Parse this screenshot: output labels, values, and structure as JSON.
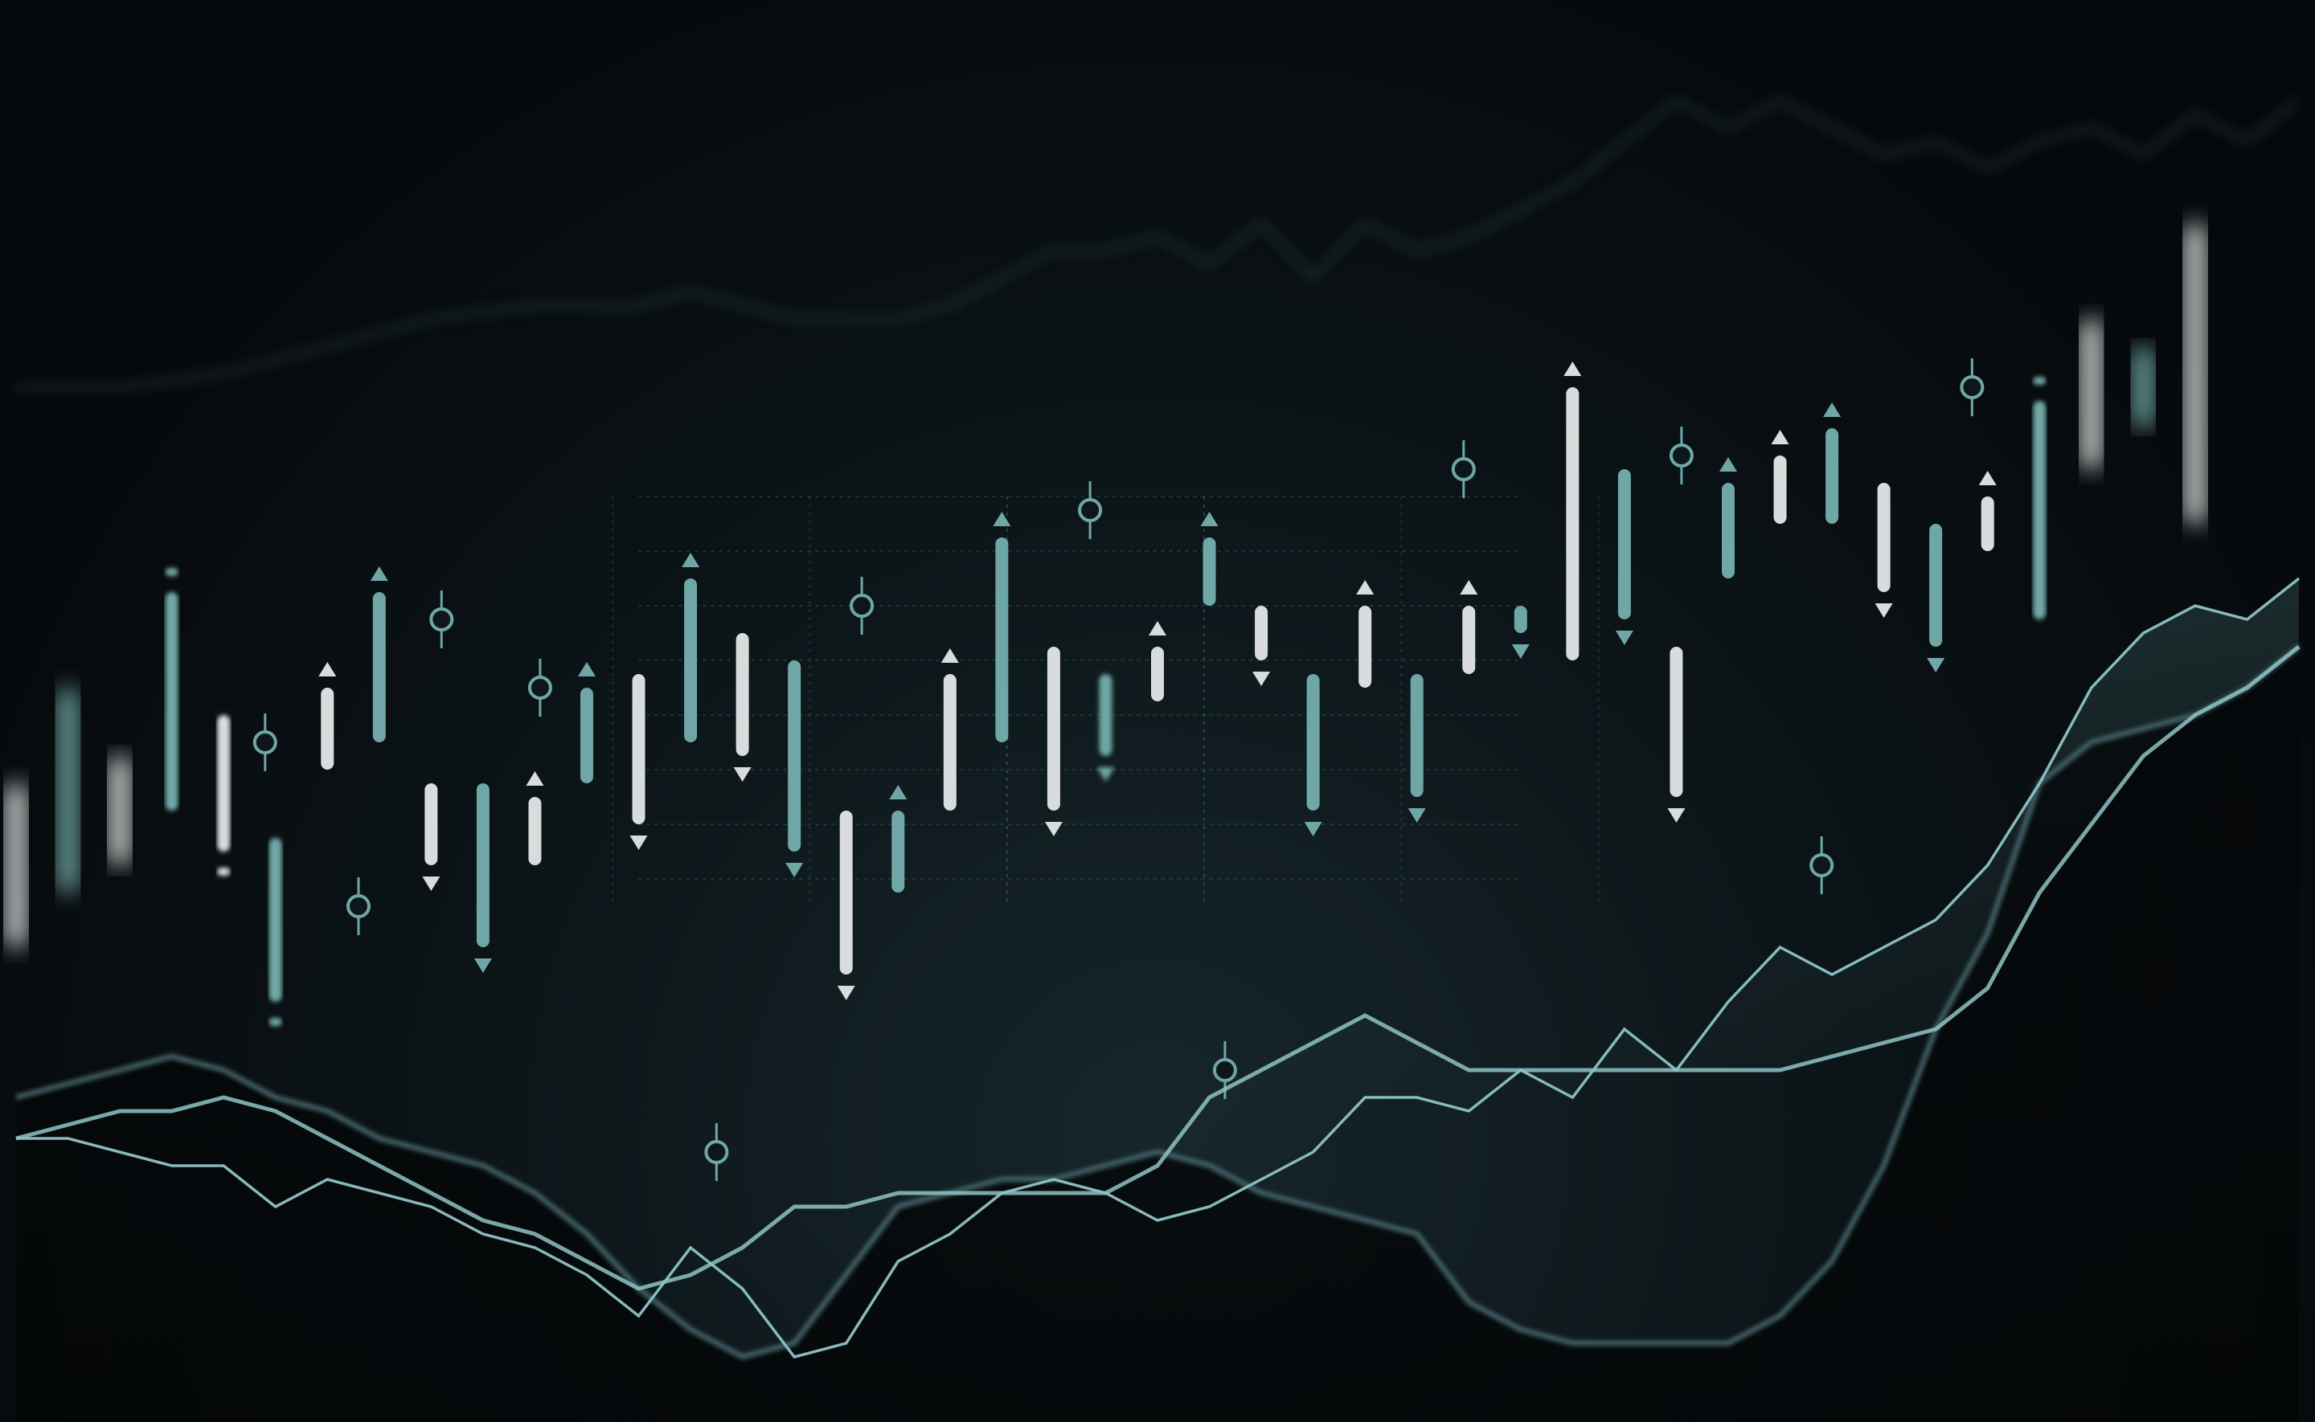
{
  "colors": {
    "teal": "#6fa7a6",
    "white": "#d9dcdc",
    "line_bright": "#8fc3c6",
    "line_dim": "#4f7479",
    "grid": "#3d6d70",
    "background": "#06090b"
  },
  "chart_data": {
    "type": "candlestick",
    "title": "",
    "xlabel": "",
    "ylabel": "",
    "grid": true,
    "legend": "none",
    "x_range": [
      0,
      44
    ],
    "y_range": [
      0,
      100
    ],
    "candles": [
      {
        "x": 0,
        "low": 33,
        "high": 45,
        "color": "white",
        "blur": 2
      },
      {
        "x": 1,
        "low": 37,
        "high": 52,
        "color": "teal",
        "blur": 2
      },
      {
        "x": 2,
        "low": 39,
        "high": 47,
        "color": "white",
        "blur": 2
      },
      {
        "x": 3,
        "low": 43,
        "high": 59,
        "color": "teal",
        "blur": 1,
        "top_dot": true
      },
      {
        "x": 4,
        "low": 40,
        "high": 50,
        "color": "white",
        "blur": 1,
        "bottom_dot": true
      },
      {
        "x": 5,
        "low": 29,
        "high": 41,
        "color": "teal",
        "blur": 1,
        "bottom_dot": true
      },
      {
        "x": 6,
        "low": 46,
        "high": 52,
        "color": "white",
        "marker": "up"
      },
      {
        "x": 7,
        "low": 48,
        "high": 59,
        "color": "teal",
        "marker": "up"
      },
      {
        "x": 8,
        "low": 39,
        "high": 45,
        "color": "white",
        "marker": "down"
      },
      {
        "x": 9,
        "low": 33,
        "high": 45,
        "color": "teal",
        "marker": "down"
      },
      {
        "x": 10,
        "low": 39,
        "high": 44,
        "color": "white",
        "marker": "up"
      },
      {
        "x": 11,
        "low": 45,
        "high": 52,
        "color": "teal",
        "marker": "up"
      },
      {
        "x": 12,
        "low": 42,
        "high": 53,
        "color": "white",
        "marker": "down"
      },
      {
        "x": 13,
        "low": 48,
        "high": 60,
        "color": "teal",
        "marker": "up"
      },
      {
        "x": 14,
        "low": 47,
        "high": 56,
        "color": "white",
        "marker": "down"
      },
      {
        "x": 15,
        "low": 40,
        "high": 54,
        "color": "teal",
        "marker": "down"
      },
      {
        "x": 16,
        "low": 31,
        "high": 43,
        "color": "white",
        "marker": "down"
      },
      {
        "x": 17,
        "low": 37,
        "high": 43,
        "color": "teal",
        "marker": "up"
      },
      {
        "x": 18,
        "low": 43,
        "high": 53,
        "color": "white",
        "marker": "up"
      },
      {
        "x": 19,
        "low": 48,
        "high": 63,
        "color": "teal",
        "marker": "up"
      },
      {
        "x": 20,
        "low": 43,
        "high": 55,
        "color": "white",
        "marker": "down"
      },
      {
        "x": 21,
        "low": 47,
        "high": 53,
        "color": "teal",
        "marker": "down",
        "blur": 1
      },
      {
        "x": 22,
        "low": 51,
        "high": 55,
        "color": "white",
        "marker": "up"
      },
      {
        "x": 23,
        "low": 58,
        "high": 63,
        "color": "teal",
        "marker": "up"
      },
      {
        "x": 24,
        "low": 54,
        "high": 58,
        "color": "white",
        "marker": "down"
      },
      {
        "x": 25,
        "low": 43,
        "high": 53,
        "color": "teal",
        "marker": "down"
      },
      {
        "x": 26,
        "low": 52,
        "high": 58,
        "color": "white",
        "marker": "up"
      },
      {
        "x": 27,
        "low": 44,
        "high": 53,
        "color": "teal",
        "marker": "down"
      },
      {
        "x": 28,
        "low": 53,
        "high": 58,
        "color": "white",
        "marker": "up"
      },
      {
        "x": 29,
        "low": 56,
        "high": 58,
        "color": "teal",
        "marker": "down"
      },
      {
        "x": 30,
        "low": 54,
        "high": 74,
        "color": "white",
        "marker": "up"
      },
      {
        "x": 31,
        "low": 57,
        "high": 68,
        "color": "teal",
        "marker": "down"
      },
      {
        "x": 32,
        "low": 44,
        "high": 55,
        "color": "white",
        "marker": "down"
      },
      {
        "x": 33,
        "low": 60,
        "high": 67,
        "color": "teal",
        "marker": "up"
      },
      {
        "x": 34,
        "low": 64,
        "high": 69,
        "color": "white",
        "marker": "up"
      },
      {
        "x": 35,
        "low": 64,
        "high": 71,
        "color": "teal",
        "marker": "up"
      },
      {
        "x": 36,
        "low": 59,
        "high": 67,
        "color": "white",
        "marker": "down"
      },
      {
        "x": 37,
        "low": 55,
        "high": 64,
        "color": "teal",
        "marker": "down"
      },
      {
        "x": 38,
        "low": 62,
        "high": 66,
        "color": "white",
        "marker": "up"
      },
      {
        "x": 39,
        "low": 57,
        "high": 73,
        "color": "teal",
        "blur": 1,
        "top_dot": true
      },
      {
        "x": 40,
        "low": 68,
        "high": 79,
        "color": "white",
        "blur": 2
      },
      {
        "x": 41,
        "low": 71,
        "high": 77,
        "color": "teal",
        "blur": 2
      },
      {
        "x": 42,
        "low": 64,
        "high": 86,
        "color": "white",
        "blur": 2
      }
    ],
    "pins": [
      {
        "x": 4.8,
        "y": 48
      },
      {
        "x": 6.6,
        "y": 36
      },
      {
        "x": 8.2,
        "y": 57
      },
      {
        "x": 10.1,
        "y": 52
      },
      {
        "x": 13.5,
        "y": 18
      },
      {
        "x": 16.3,
        "y": 58
      },
      {
        "x": 20.7,
        "y": 65
      },
      {
        "x": 23.3,
        "y": 24
      },
      {
        "x": 27.9,
        "y": 68
      },
      {
        "x": 32.1,
        "y": 69
      },
      {
        "x": 34.8,
        "y": 39
      },
      {
        "x": 37.7,
        "y": 74
      }
    ],
    "series": [
      {
        "role": "upper-line",
        "x": [
          0,
          1,
          2,
          3,
          4,
          5,
          6,
          7,
          8,
          9,
          10,
          11,
          12,
          13,
          14,
          15,
          16,
          17,
          18,
          19,
          20,
          21,
          22,
          23,
          24,
          25,
          26,
          27,
          28,
          29,
          30,
          31,
          32,
          33,
          34,
          35,
          36,
          37,
          38,
          39,
          40,
          41,
          42,
          43,
          44
        ],
        "values": [
          19,
          19,
          18,
          17,
          17,
          14,
          16,
          15,
          14,
          12,
          11,
          9,
          6,
          11,
          8,
          3,
          4,
          10,
          12,
          15,
          16,
          15,
          13,
          14,
          16,
          18,
          22,
          22,
          21,
          24,
          22,
          27,
          24,
          29,
          33,
          31,
          33,
          35,
          39,
          45,
          52,
          56,
          58,
          57,
          60
        ]
      },
      {
        "role": "lower-line",
        "x": [
          0,
          1,
          2,
          3,
          4,
          5,
          6,
          7,
          8,
          9,
          10,
          11,
          12,
          13,
          14,
          15,
          16,
          17,
          18,
          19,
          20,
          21,
          22,
          23,
          24,
          25,
          26,
          27,
          28,
          29,
          30,
          31,
          32,
          33,
          34,
          35,
          36,
          37,
          38,
          39,
          40,
          41,
          42,
          43,
          44
        ],
        "values": [
          22,
          23,
          24,
          25,
          24,
          22,
          21,
          19,
          18,
          17,
          15,
          12,
          8,
          5,
          3,
          4,
          9,
          14,
          15,
          16,
          16,
          17,
          18,
          17,
          15,
          14,
          13,
          12,
          7,
          5,
          4,
          4,
          4,
          4,
          6,
          10,
          17,
          27,
          34,
          45,
          48,
          49,
          50,
          52,
          55
        ]
      },
      {
        "role": "band-line",
        "x": [
          0,
          1,
          2,
          3,
          4,
          5,
          6,
          7,
          8,
          9,
          10,
          11,
          12,
          13,
          14,
          15,
          16,
          17,
          18,
          19,
          20,
          21,
          22,
          23,
          24,
          25,
          26,
          27,
          28,
          29,
          30,
          31,
          32,
          33,
          34,
          35,
          36,
          37,
          38,
          39,
          40,
          41,
          42,
          43,
          44
        ],
        "values": [
          19,
          20,
          21,
          21,
          22,
          21,
          19,
          17,
          15,
          13,
          12,
          10,
          8,
          9,
          11,
          14,
          14,
          15,
          15,
          15,
          15,
          15,
          17,
          22,
          24,
          26,
          28,
          26,
          24,
          24,
          24,
          24,
          24,
          24,
          24,
          25,
          26,
          27,
          30,
          37,
          42,
          47,
          50,
          52,
          55
        ]
      },
      {
        "role": "top-faint-line",
        "x": [
          0,
          2,
          4,
          6,
          8,
          10,
          12,
          13,
          14,
          15,
          16,
          17,
          18,
          19,
          20,
          21,
          22,
          23,
          24,
          25,
          26,
          27,
          28,
          29,
          30,
          31,
          32,
          33,
          34,
          35,
          36,
          37,
          38,
          39,
          40,
          41,
          42,
          43,
          44
        ],
        "values": [
          74,
          74,
          75,
          77,
          79,
          80,
          80,
          81,
          80,
          79,
          79,
          79,
          80,
          82,
          84,
          84,
          85,
          83,
          86,
          82,
          86,
          84,
          85,
          87,
          89,
          92,
          95,
          93,
          95,
          93,
          91,
          92,
          90,
          92,
          93,
          91,
          94,
          92,
          95
        ]
      }
    ]
  }
}
